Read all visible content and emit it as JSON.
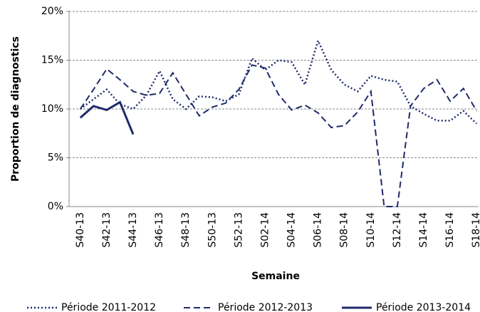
{
  "chart_data": {
    "type": "line",
    "y_label": "Proportion de diagnostics",
    "x_label": "Semaine",
    "categories": [
      "S40-13",
      null,
      "S42-13",
      null,
      "S44-13",
      null,
      "S46-13",
      null,
      "S48-13",
      null,
      "S50-13",
      null,
      "S52-13",
      null,
      "S02-14",
      null,
      "S04-14",
      null,
      "S06-14",
      null,
      "S08-14",
      null,
      "S10-14",
      null,
      "S12-14",
      null,
      "S14-14",
      null,
      "S16-14",
      null,
      "S18-14"
    ],
    "series": [
      {
        "name": "Période 2011-2012",
        "color": "#1f2a6b",
        "dash": "dotted",
        "values": [
          10,
          11,
          12,
          10.5,
          10,
          11.4,
          13.9,
          11,
          10,
          11.3,
          11.2,
          10.8,
          11.5,
          15.2,
          14,
          15,
          14.8,
          12.5,
          17,
          14,
          12.5,
          11.8,
          13.4,
          13,
          12.8,
          10.3,
          9.5,
          8.8,
          8.8,
          9.8,
          8.5
        ]
      },
      {
        "name": "Période 2012-2013",
        "color": "#1f2a6b",
        "dash": "dashed",
        "values": [
          10,
          12,
          14.1,
          13,
          11.8,
          11.4,
          11.6,
          13.7,
          11.5,
          9.3,
          10.2,
          10.6,
          12,
          14.5,
          14.2,
          11.5,
          9.9,
          10.4,
          9.6,
          8.1,
          8.3,
          9.7,
          11.8,
          0,
          0,
          10.3,
          12.1,
          13,
          10.8,
          12.1,
          9.8
        ]
      },
      {
        "name": "Période 2013-2014",
        "color": "#1f2a6b",
        "dash": "solid",
        "values": [
          9.1,
          10.3,
          9.9,
          10.7,
          7.4,
          null,
          null,
          null,
          null,
          null,
          null,
          null,
          null,
          null,
          null,
          null,
          null,
          null,
          null,
          null,
          null,
          null,
          null,
          null,
          null,
          null,
          null,
          null,
          null,
          null,
          null
        ]
      }
    ],
    "ylim": [
      0,
      20
    ],
    "yticks": [
      {
        "value": 0,
        "label": "0%"
      },
      {
        "value": 5,
        "label": "5%"
      },
      {
        "value": 10,
        "label": "10%"
      },
      {
        "value": 15,
        "label": "15%"
      },
      {
        "value": 20,
        "label": "20%"
      }
    ],
    "grid": true
  }
}
